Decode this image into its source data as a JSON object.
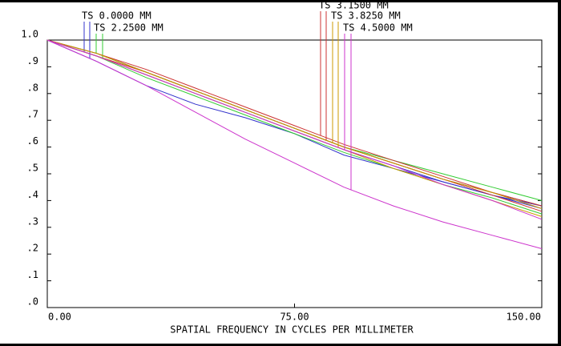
{
  "chart_data": {
    "type": "line",
    "xlabel": "SPATIAL FREQUENCY IN CYCLES PER MILLIMETER",
    "x": [
      0,
      15,
      30,
      45,
      60,
      75,
      90,
      105,
      120,
      135,
      150
    ],
    "xlim": [
      0,
      150
    ],
    "xticks": [
      {
        "value": 0,
        "label": "0.00"
      },
      {
        "value": 75,
        "label": "75.00"
      },
      {
        "value": 150,
        "label": "150.00"
      }
    ],
    "ylim": [
      0,
      1
    ],
    "yticks": [
      {
        "value": 0,
        "label": ".0"
      },
      {
        "value": 0.1,
        "label": ".1"
      },
      {
        "value": 0.2,
        "label": ".2"
      },
      {
        "value": 0.3,
        "label": ".3"
      },
      {
        "value": 0.4,
        "label": ".4"
      },
      {
        "value": 0.5,
        "label": ".5"
      },
      {
        "value": 0.6,
        "label": ".6"
      },
      {
        "value": 0.7,
        "label": ".7"
      },
      {
        "value": 0.8,
        "label": ".8"
      },
      {
        "value": 0.9,
        "label": ".9"
      },
      {
        "value": 1,
        "label": "1.0"
      }
    ],
    "reference": {
      "color": "#000000",
      "values": [
        1,
        0.95,
        0.88,
        0.81,
        0.74,
        0.67,
        0.6,
        0.54,
        0.48,
        0.43,
        0.38
      ]
    },
    "series": [
      {
        "name": "TS 0.0000 MM",
        "color": "#3333cc",
        "tangential": [
          1,
          0.94,
          0.87,
          0.8,
          0.73,
          0.66,
          0.59,
          0.53,
          0.47,
          0.42,
          0.38
        ],
        "sagittal": [
          1,
          0.92,
          0.83,
          0.76,
          0.71,
          0.65,
          0.57,
          0.52,
          0.47,
          0.42,
          0.37
        ]
      },
      {
        "name": "TS 2.2500 MM",
        "color": "#33cc33",
        "tangential": [
          1,
          0.95,
          0.88,
          0.81,
          0.74,
          0.67,
          0.6,
          0.55,
          0.5,
          0.45,
          0.4
        ],
        "sagittal": [
          1,
          0.94,
          0.86,
          0.79,
          0.72,
          0.65,
          0.58,
          0.52,
          0.46,
          0.41,
          0.35
        ]
      },
      {
        "name": "TS 3.1500 MM",
        "color": "#cc3333",
        "tangential": [
          1,
          0.95,
          0.89,
          0.82,
          0.75,
          0.68,
          0.61,
          0.55,
          0.49,
          0.43,
          0.38
        ],
        "sagittal": [
          1,
          0.94,
          0.88,
          0.81,
          0.74,
          0.67,
          0.6,
          0.54,
          0.48,
          0.42,
          0.36
        ]
      },
      {
        "name": "TS 3.8250 MM",
        "color": "#cc9900",
        "tangential": [
          1,
          0.95,
          0.88,
          0.81,
          0.74,
          0.67,
          0.6,
          0.54,
          0.48,
          0.43,
          0.37
        ],
        "sagittal": [
          1,
          0.94,
          0.87,
          0.8,
          0.73,
          0.66,
          0.59,
          0.52,
          0.46,
          0.4,
          0.34
        ]
      },
      {
        "name": "TS 4.5000 MM",
        "color": "#cc33cc",
        "tangential": [
          1,
          0.94,
          0.87,
          0.8,
          0.73,
          0.66,
          0.59,
          0.53,
          0.46,
          0.4,
          0.33
        ],
        "sagittal": [
          1,
          0.92,
          0.83,
          0.73,
          0.63,
          0.54,
          0.45,
          0.38,
          0.32,
          0.27,
          0.22
        ]
      }
    ]
  }
}
